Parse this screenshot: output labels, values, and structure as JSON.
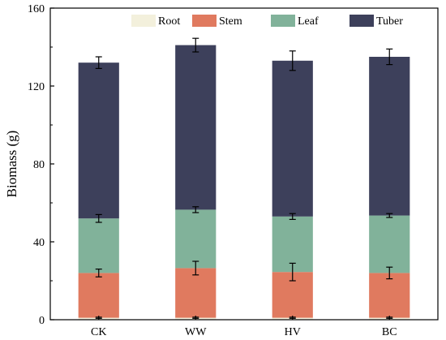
{
  "chart_data": {
    "type": "bar",
    "stacked": true,
    "categories": [
      "CK",
      "WW",
      "HV",
      "BC"
    ],
    "series": [
      {
        "name": "Root",
        "color": "#f3f0dc",
        "values": [
          1.0,
          1.0,
          1.0,
          1.0
        ],
        "errors": [
          0.3,
          0.3,
          0.3,
          0.3
        ]
      },
      {
        "name": "Stem",
        "color": "#e07a5f",
        "values": [
          23.0,
          25.5,
          23.5,
          23.0
        ],
        "errors": [
          2.0,
          3.5,
          4.5,
          3.0
        ]
      },
      {
        "name": "Leaf",
        "color": "#81b29a",
        "values": [
          28.0,
          30.0,
          28.5,
          29.5
        ],
        "errors": [
          2.0,
          1.5,
          1.5,
          1.0
        ]
      },
      {
        "name": "Tuber",
        "color": "#3d405b",
        "values": [
          80.0,
          84.5,
          80.0,
          81.5
        ],
        "errors": [
          3.0,
          3.5,
          5.0,
          4.0
        ]
      }
    ],
    "xlabel": "",
    "ylabel": "Biomass (g)",
    "ylim": [
      0,
      160
    ],
    "yticks": [
      0,
      40,
      80,
      120,
      160
    ],
    "legend_position": "top-center",
    "grid": false
  }
}
